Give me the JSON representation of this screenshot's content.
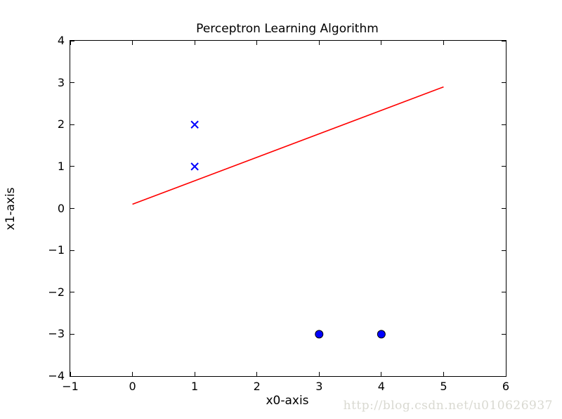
{
  "watermark": {
    "text": "http://blog.csdn.net/u010626937",
    "color": "#d9d9d1"
  },
  "chart_data": {
    "type": "scatter",
    "title": "Perceptron Learning Algorithm",
    "xlabel": "x0-axis",
    "ylabel": "x1-axis",
    "xlim": [
      -1,
      6
    ],
    "ylim": [
      -4,
      4
    ],
    "xticks": [
      -1,
      0,
      1,
      2,
      3,
      4,
      5,
      6
    ],
    "yticks": [
      -4,
      -3,
      -2,
      -1,
      0,
      1,
      2,
      3,
      4
    ],
    "grid": false,
    "legend_position": "none",
    "frame_color": "#000000",
    "tick_direction": "in",
    "series": [
      {
        "name": "positive-class-points",
        "type": "scatter",
        "marker": "x",
        "color": "#0000ff",
        "points": [
          [
            1,
            2
          ],
          [
            1,
            1
          ]
        ]
      },
      {
        "name": "negative-class-points",
        "type": "scatter",
        "marker": "o",
        "color": "#0000ff",
        "edge_color": "#000000",
        "points": [
          [
            3,
            -3
          ],
          [
            4,
            -3
          ]
        ]
      },
      {
        "name": "decision-boundary-line",
        "type": "line",
        "color": "#ff0000",
        "points": [
          [
            0,
            0.1
          ],
          [
            5,
            2.9
          ]
        ]
      }
    ]
  }
}
